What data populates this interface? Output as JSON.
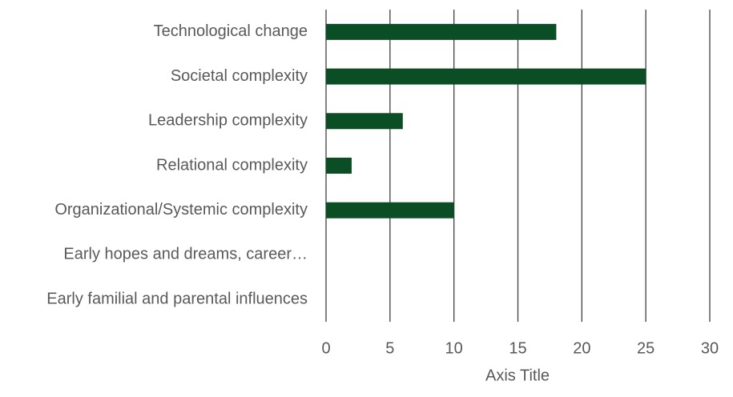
{
  "chart_data": {
    "type": "bar",
    "orientation": "horizontal",
    "categories": [
      "Technological change",
      "Societal complexity",
      "Leadership complexity",
      "Relational complexity",
      "Organizational/Systemic complexity",
      "Early hopes and dreams, career…",
      "Early familial and parental influences"
    ],
    "values": [
      18,
      25,
      6,
      2,
      10,
      0,
      0
    ],
    "color": "#0b4d24",
    "x_label": "Axis Title",
    "xlim": [
      0,
      30
    ],
    "xticks": [
      0,
      5,
      10,
      15,
      20,
      25,
      30
    ],
    "grid": true
  }
}
